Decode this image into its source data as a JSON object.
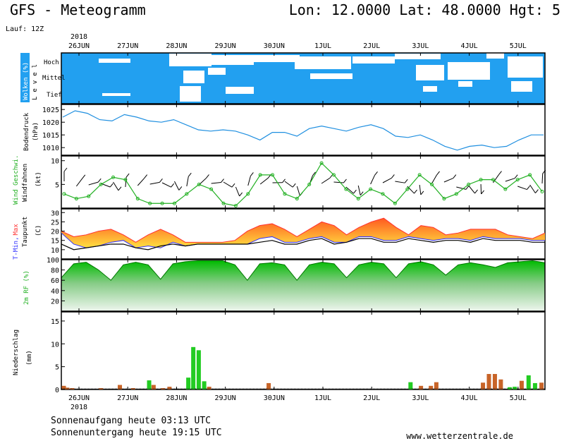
{
  "header": {
    "title": "GFS - Meteogramm",
    "location": "Lon: 12.0000 Lat: 48.0000 Hgt: 5",
    "run": "Lauf: 12Z"
  },
  "time_axis": {
    "year": "2018",
    "days": [
      "26JUN",
      "27JUN",
      "28JUN",
      "29JUN",
      "30JUN",
      "1JUL",
      "2JUL",
      "3JUL",
      "4JUL",
      "5JUL"
    ]
  },
  "footer": {
    "sunrise": "Sonnenaufgang heute 03:13 UTC",
    "sunset": "Sonnenuntergang heute 19:15 UTC",
    "website": "www.wetterzentrale.de"
  },
  "colors": {
    "cloud": "#22a0f0",
    "pressure": "#1f8fe0",
    "wind_speed": "#22b022",
    "tmin": "#3030ff",
    "tmax": "#ff3030",
    "dewpoint": "#000000",
    "rh": "#22c822",
    "rain_green": "#22cc22",
    "rain_brown": "#c86428"
  },
  "chart_data": [
    {
      "type": "heatmap",
      "ylabel": "Wolken (%)",
      "level_label": "Level",
      "levels": [
        "Hoch",
        "Mittel",
        "Tief"
      ],
      "note": ""
    },
    {
      "type": "line",
      "ylabel": "Bodendruck",
      "unit": "(hPa)",
      "ylim": [
        1007,
        1027
      ],
      "yticks": [
        1010,
        1015,
        1020,
        1025
      ],
      "x_days": [
        0,
        0.25,
        0.5,
        0.75,
        1,
        1.25,
        1.5,
        1.75,
        2,
        2.25,
        2.5,
        2.75,
        3,
        3.25,
        3.5,
        3.75,
        4,
        4.25,
        4.5,
        4.75,
        5,
        5.25,
        5.5,
        5.75,
        6,
        6.25,
        6.5,
        6.75,
        7,
        7.25,
        7.5,
        7.75,
        8,
        8.25,
        8.5,
        8.75,
        9,
        9.25,
        9.5,
        9.75
      ],
      "values": [
        1022,
        1024.5,
        1023.5,
        1021,
        1020.5,
        1023,
        1022,
        1020.5,
        1020,
        1021,
        1019,
        1017,
        1016.5,
        1017,
        1016.5,
        1015,
        1013,
        1016,
        1016,
        1014.5,
        1017.5,
        1018.5,
        1017.5,
        1016.5,
        1018,
        1019,
        1017.5,
        1014.5,
        1014,
        1015,
        1013,
        1010.5,
        1009,
        1010.5,
        1011,
        1010,
        1010.5,
        1013,
        1015,
        1015
      ]
    },
    {
      "type": "line",
      "series_name": "Wind Geschwi.",
      "ylabel2": "Windfahnen",
      "unit": "(kt)",
      "ylim": [
        0,
        11
      ],
      "yticks": [
        5,
        10
      ],
      "x_days": [
        0,
        0.25,
        0.5,
        0.75,
        1,
        1.25,
        1.5,
        1.75,
        2,
        2.25,
        2.5,
        2.75,
        3,
        3.25,
        3.5,
        3.75,
        4,
        4.25,
        4.5,
        4.75,
        5,
        5.25,
        5.5,
        5.75,
        6,
        6.25,
        6.5,
        6.75,
        7,
        7.25,
        7.5,
        7.75,
        8,
        8.25,
        8.5,
        8.75,
        9,
        9.25,
        9.5,
        9.75
      ],
      "values": [
        3,
        2,
        2.5,
        5,
        6.5,
        6,
        2,
        1,
        1,
        1,
        3,
        5,
        4,
        1,
        0.5,
        3,
        7,
        7,
        3,
        2,
        5,
        9.5,
        7,
        4,
        2,
        4,
        3,
        1,
        4,
        7,
        5,
        2,
        3,
        5,
        6,
        6,
        4,
        6,
        7,
        3.5
      ]
    },
    {
      "type": "area",
      "series": [
        {
          "name": "T-Min,",
          "values": [
            19,
            13,
            11,
            12,
            14,
            15,
            11,
            12,
            11,
            14,
            12,
            13,
            13,
            13,
            13,
            13,
            16,
            17,
            14,
            14,
            16,
            17,
            14,
            14,
            17,
            17,
            15,
            15,
            17,
            16,
            15,
            16,
            16,
            15,
            17,
            16,
            16,
            16,
            15,
            15
          ]
        },
        {
          "name": "Max",
          "values": [
            20,
            17,
            18,
            20,
            21,
            18,
            14,
            18,
            21,
            18,
            14,
            14,
            14,
            14,
            15,
            20,
            23,
            24,
            21,
            17,
            21,
            25,
            23,
            18,
            22,
            25,
            27,
            22,
            18,
            23,
            22,
            18,
            19,
            21,
            21,
            21,
            18,
            17,
            16,
            19
          ]
        },
        {
          "name": "Taupunkt",
          "values": [
            13,
            10,
            11,
            12,
            13,
            13,
            11,
            10,
            12,
            13,
            12,
            13,
            13,
            13,
            13,
            13,
            14,
            15,
            13,
            13,
            15,
            16,
            13,
            14,
            16,
            16,
            14,
            14,
            16,
            15,
            14,
            15,
            15,
            14,
            16,
            15,
            15,
            15,
            14,
            14
          ]
        }
      ],
      "x_days": [
        0,
        0.25,
        0.5,
        0.75,
        1,
        1.25,
        1.5,
        1.75,
        2,
        2.25,
        2.5,
        2.75,
        3,
        3.25,
        3.5,
        3.75,
        4,
        4.25,
        4.5,
        4.75,
        5,
        5.25,
        5.5,
        5.75,
        6,
        6.25,
        6.5,
        6.75,
        7,
        7.25,
        7.5,
        7.75,
        8,
        8.25,
        8.5,
        8.75,
        9,
        9.25,
        9.5,
        9.75
      ],
      "unit": "(C)",
      "ylim": [
        5,
        32
      ],
      "yticks": [
        10,
        15,
        20,
        25,
        30
      ]
    },
    {
      "type": "area",
      "ylabel": "2m RF (%)",
      "ylim": [
        0,
        100
      ],
      "yticks": [
        20,
        40,
        60,
        80,
        100
      ],
      "x_days": [
        0,
        0.25,
        0.5,
        0.75,
        1,
        1.25,
        1.5,
        1.75,
        2,
        2.25,
        2.5,
        2.75,
        3,
        3.25,
        3.5,
        3.75,
        4,
        4.25,
        4.5,
        4.75,
        5,
        5.25,
        5.5,
        5.75,
        6,
        6.25,
        6.5,
        6.75,
        7,
        7.25,
        7.5,
        7.75,
        8,
        8.25,
        8.5,
        8.75,
        9,
        9.25,
        9.5,
        9.75
      ],
      "values": [
        65,
        92,
        95,
        80,
        60,
        90,
        95,
        90,
        62,
        92,
        96,
        98,
        98,
        98,
        90,
        60,
        92,
        94,
        90,
        60,
        90,
        95,
        92,
        65,
        90,
        95,
        92,
        65,
        92,
        96,
        90,
        70,
        90,
        94,
        90,
        85,
        94,
        96,
        98,
        94
      ]
    },
    {
      "type": "bar",
      "ylabel": "Niederschlag",
      "unit": "(mm)",
      "ylim": [
        0,
        17
      ],
      "yticks": [
        0,
        5,
        10,
        15
      ],
      "bars": [
        {
          "day": 0.05,
          "value": 0.8,
          "color": "brown"
        },
        {
          "day": 0.12,
          "value": 0.4,
          "color": "brown"
        },
        {
          "day": 0.22,
          "value": 0.3,
          "color": "brown"
        },
        {
          "day": 0.8,
          "value": 0.3,
          "color": "brown"
        },
        {
          "day": 1.18,
          "value": 1.0,
          "color": "brown"
        },
        {
          "day": 1.45,
          "value": 0.3,
          "color": "brown"
        },
        {
          "day": 1.77,
          "value": 2.0,
          "color": "green"
        },
        {
          "day": 1.86,
          "value": 1.0,
          "color": "brown"
        },
        {
          "day": 2.05,
          "value": 0.3,
          "color": "brown"
        },
        {
          "day": 2.18,
          "value": 0.6,
          "color": "brown"
        },
        {
          "day": 2.56,
          "value": 2.6,
          "color": "green"
        },
        {
          "day": 2.66,
          "value": 9.3,
          "color": "green"
        },
        {
          "day": 2.77,
          "value": 8.6,
          "color": "green"
        },
        {
          "day": 2.88,
          "value": 1.8,
          "color": "green"
        },
        {
          "day": 2.98,
          "value": 0.6,
          "color": "brown"
        },
        {
          "day": 4.18,
          "value": 1.4,
          "color": "brown"
        },
        {
          "day": 7.04,
          "value": 1.6,
          "color": "green"
        },
        {
          "day": 7.25,
          "value": 0.8,
          "color": "brown"
        },
        {
          "day": 7.45,
          "value": 0.8,
          "color": "brown"
        },
        {
          "day": 7.56,
          "value": 1.6,
          "color": "brown"
        },
        {
          "day": 8.5,
          "value": 1.5,
          "color": "brown"
        },
        {
          "day": 8.62,
          "value": 3.4,
          "color": "brown"
        },
        {
          "day": 8.74,
          "value": 3.4,
          "color": "brown"
        },
        {
          "day": 8.86,
          "value": 2.2,
          "color": "brown"
        },
        {
          "day": 9.04,
          "value": 0.5,
          "color": "green"
        },
        {
          "day": 9.14,
          "value": 0.6,
          "color": "green"
        },
        {
          "day": 9.28,
          "value": 1.9,
          "color": "brown"
        },
        {
          "day": 9.42,
          "value": 3.1,
          "color": "green"
        },
        {
          "day": 9.55,
          "value": 1.4,
          "color": "green"
        },
        {
          "day": 9.68,
          "value": 1.5,
          "color": "brown"
        }
      ]
    }
  ]
}
